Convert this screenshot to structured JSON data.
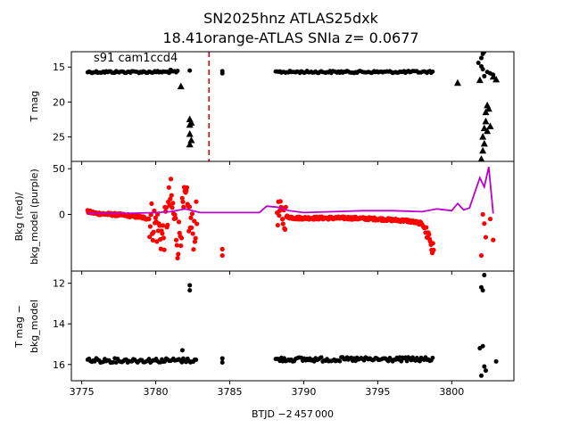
{
  "figure": {
    "title_line1": "SN2025hnz  ATLAS25dxk",
    "title_line2": "18.41orange-ATLAS SNIa z= 0.0677",
    "xlabel": "BTJD −2 457 000"
  },
  "chart_data": [
    {
      "type": "scatter",
      "panel": "top",
      "ylabel": "T mag",
      "annotation": "s91 cam1ccd4",
      "xlim": [
        3774.3,
        3804.2
      ],
      "ylim": [
        28.5,
        12.8
      ],
      "y_inverted": true,
      "xticks": [
        3775,
        3780,
        3785,
        3790,
        3795,
        3800
      ],
      "yticks": [
        15,
        20,
        25
      ],
      "colors": {
        "points": "#000000",
        "marker_line": "#dd0000"
      },
      "vline_x": 3783.6,
      "series": [
        {
          "marker": "circle",
          "segments": [
            {
              "x_start": 3775.4,
              "x_end": 3781.5,
              "y": 15.7
            },
            {
              "x_start": 3788.1,
              "x_end": 3798.8,
              "y": 15.7
            }
          ]
        },
        {
          "marker": "circle",
          "points": [
            {
              "x": 3781.0,
              "y": 15.4
            },
            {
              "x": 3782.3,
              "y": 15.5
            },
            {
              "x": 3784.5,
              "y": 15.6
            },
            {
              "x": 3784.5,
              "y": 15.9
            },
            {
              "x": 3802.0,
              "y": 14.9
            },
            {
              "x": 3802.1,
              "y": 15.3
            },
            {
              "x": 3802.2,
              "y": 16.3
            },
            {
              "x": 3802.4,
              "y": 15.7
            },
            {
              "x": 3802.6,
              "y": 15.9
            },
            {
              "x": 3802.8,
              "y": 16.1
            },
            {
              "x": 3801.8,
              "y": 14.4
            },
            {
              "x": 3802.0,
              "y": 13.7
            },
            {
              "x": 3802.1,
              "y": 13.1
            },
            {
              "x": 3802.2,
              "y": 12.8
            }
          ]
        },
        {
          "marker": "triangle",
          "points": [
            {
              "x": 3781.7,
              "y": 17.8
            },
            {
              "x": 3782.3,
              "y": 22.5
            },
            {
              "x": 3782.3,
              "y": 23.3
            },
            {
              "x": 3782.3,
              "y": 24.6
            },
            {
              "x": 3782.3,
              "y": 26.1
            },
            {
              "x": 3782.4,
              "y": 23.0
            },
            {
              "x": 3782.4,
              "y": 25.5
            },
            {
              "x": 3800.4,
              "y": 17.3
            },
            {
              "x": 3801.9,
              "y": 16.9
            },
            {
              "x": 3802.1,
              "y": 25.0
            },
            {
              "x": 3802.1,
              "y": 27.0
            },
            {
              "x": 3802.2,
              "y": 23.8
            },
            {
              "x": 3802.2,
              "y": 26.0
            },
            {
              "x": 3802.3,
              "y": 21.5
            },
            {
              "x": 3802.3,
              "y": 22.8
            },
            {
              "x": 3802.4,
              "y": 20.5
            },
            {
              "x": 3802.4,
              "y": 24.2
            },
            {
              "x": 3802.5,
              "y": 21.0
            },
            {
              "x": 3802.6,
              "y": 23.5
            },
            {
              "x": 3802.0,
              "y": 28.2
            },
            {
              "x": 3802.8,
              "y": 16.4
            },
            {
              "x": 3803.0,
              "y": 16.8
            }
          ]
        }
      ]
    },
    {
      "type": "line",
      "panel": "middle",
      "ylabel_line1": "Bkg (red)/",
      "ylabel_line2": "bkg_model (purple)",
      "xlim": [
        3774.3,
        3804.2
      ],
      "ylim": [
        -62,
        58
      ],
      "yticks": [
        0,
        50
      ],
      "colors": {
        "bkg": "#ff0000",
        "model": "#bb00cc"
      },
      "series": [
        {
          "name": "Bkg",
          "x": [
            3775.4,
            3776.0,
            3777.0,
            3778.0,
            3779.0,
            3779.6,
            3780.0,
            3780.5,
            3781.0,
            3781.5,
            3782.0,
            3782.5,
            3782.8,
            3788.2,
            3788.6,
            3789.5,
            3791.0,
            3793.0,
            3795.0,
            3797.0,
            3798.0,
            3798.5,
            3798.8
          ],
          "y": [
            3,
            1,
            0,
            -1,
            -3,
            -5,
            -10,
            -25,
            20,
            -30,
            15,
            -20,
            -5,
            2,
            -2,
            -4,
            -4,
            -4,
            -5,
            -7,
            -10,
            -25,
            -45
          ]
        },
        {
          "name": "bkg_model",
          "x": [
            3775.4,
            3778.0,
            3780.0,
            3781.0,
            3782.0,
            3783.0,
            3785.5,
            3787.0,
            3787.5,
            3788.2,
            3789.0,
            3790.0,
            3792.0,
            3794.0,
            3796.0,
            3798.0,
            3799.0,
            3800.0,
            3800.4,
            3800.8,
            3801.2,
            3801.6,
            3801.9,
            3802.2,
            3802.5,
            3802.8
          ],
          "y": [
            1,
            1,
            2,
            3,
            6,
            2,
            2,
            2,
            9,
            8,
            4,
            2,
            3,
            4,
            4,
            3,
            6,
            4,
            12,
            5,
            7,
            26,
            40,
            30,
            52,
            1
          ]
        }
      ]
    },
    {
      "type": "scatter",
      "panel": "bottom",
      "ylabel_line1": "T mag −",
      "ylabel_line2": "bkg_model",
      "xlim": [
        3774.3,
        3804.2
      ],
      "ylim": [
        16.8,
        11.4
      ],
      "y_inverted": true,
      "yticks": [
        12,
        14,
        16
      ],
      "colors": {
        "points": "#000000"
      },
      "series": [
        {
          "marker": "circle",
          "segments": [
            {
              "x_start": 3775.4,
              "x_end": 3782.8,
              "y": 15.8
            },
            {
              "x_start": 3788.1,
              "x_end": 3798.8,
              "y": 15.75
            }
          ]
        },
        {
          "marker": "circle",
          "points": [
            {
              "x": 3782.3,
              "y": 12.1
            },
            {
              "x": 3782.3,
              "y": 12.35
            },
            {
              "x": 3781.8,
              "y": 15.3
            },
            {
              "x": 3784.5,
              "y": 15.7
            },
            {
              "x": 3784.5,
              "y": 15.9
            },
            {
              "x": 3802.2,
              "y": 11.6
            },
            {
              "x": 3802.0,
              "y": 12.2
            },
            {
              "x": 3802.1,
              "y": 12.35
            },
            {
              "x": 3801.9,
              "y": 15.2
            },
            {
              "x": 3802.1,
              "y": 15.1
            },
            {
              "x": 3802.2,
              "y": 16.1
            },
            {
              "x": 3802.3,
              "y": 16.3
            },
            {
              "x": 3802.0,
              "y": 16.55
            },
            {
              "x": 3803.0,
              "y": 15.85
            }
          ]
        }
      ]
    }
  ]
}
